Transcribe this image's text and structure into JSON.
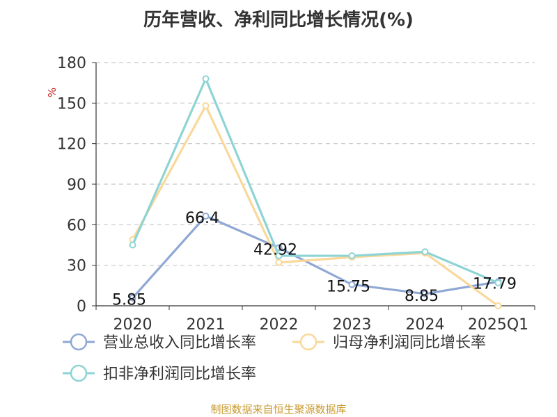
{
  "chart_data": {
    "type": "line",
    "title": "历年营收、净利同比增长情况(%)",
    "ylabel": "%",
    "categories": [
      "2020",
      "2021",
      "2022",
      "2023",
      "2024",
      "2025Q1"
    ],
    "ylim": [
      0,
      180
    ],
    "yticks": [
      0,
      30,
      60,
      90,
      120,
      150,
      180
    ],
    "grid": true,
    "legend_position": "bottom",
    "series": [
      {
        "name": "营业总收入同比增长率",
        "color": "#8fa8d4",
        "values": [
          5.85,
          66.4,
          42.92,
          15.75,
          8.85,
          17.79
        ],
        "labels": [
          "5.85",
          "66.4",
          "42.92",
          "15.75",
          "8.85",
          "17.79"
        ]
      },
      {
        "name": "归母净利润同比增长率",
        "color": "#f9d89a",
        "values": [
          49,
          148,
          32,
          36,
          39,
          0
        ]
      },
      {
        "name": "扣非净利润同比增长率",
        "color": "#8ed4d4",
        "values": [
          45,
          168,
          37,
          37,
          40,
          17
        ]
      }
    ]
  },
  "source": "制图数据来自恒生聚源数据库"
}
